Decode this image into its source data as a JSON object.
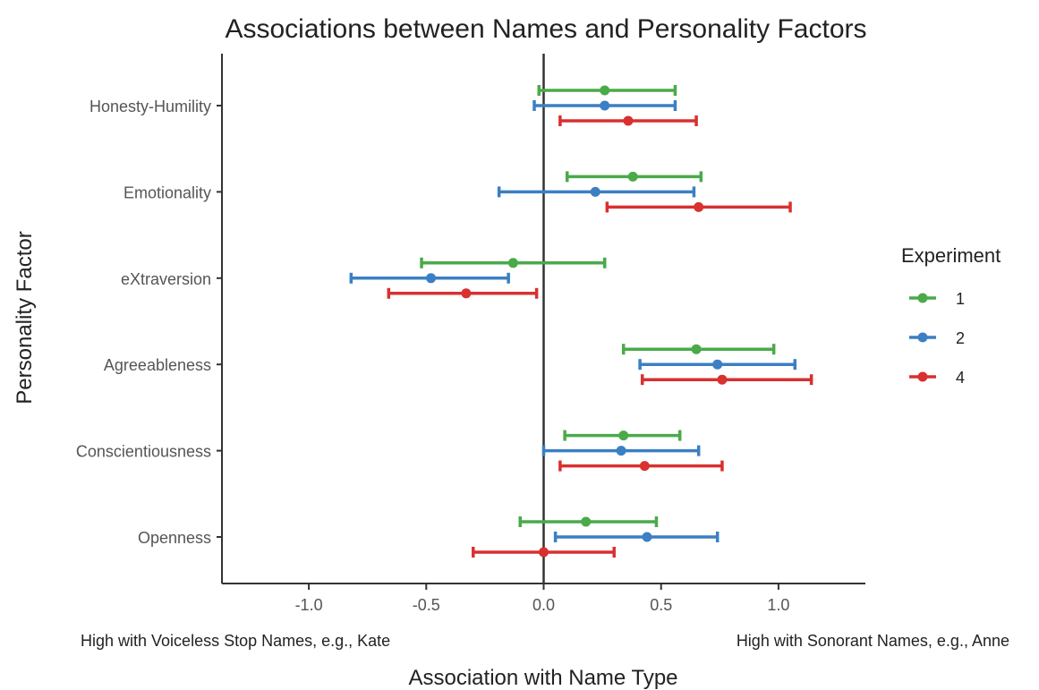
{
  "chart_data": {
    "type": "errorbar",
    "title": "Associations between Names and Personality Factors",
    "xlabel": "Association with Name Type",
    "ylabel": "Personality Factor",
    "xlim": [
      -1.37,
      1.37
    ],
    "x_ticks": [
      -1.0,
      -0.5,
      0.0,
      0.5,
      1.0
    ],
    "x_tick_labels": [
      "-1.0",
      "-0.5",
      "0.0",
      "0.5",
      "1.0"
    ],
    "x_annotation_left": "High with Voiceless Stop Names, e.g., Kate",
    "x_annotation_right": "High with Sonorant Names, e.g., Anne",
    "categories": [
      "Honesty-Humility",
      "Emotionality",
      "eXtraversion",
      "Agreeableness",
      "Conscientiousness",
      "Openness"
    ],
    "legend": {
      "title": "Experiment",
      "placement": "right"
    },
    "series": [
      {
        "name": "1",
        "color": "#4aaa4a",
        "points": [
          {
            "category": "Honesty-Humility",
            "estimate": 0.26,
            "low": -0.02,
            "high": 0.56
          },
          {
            "category": "Emotionality",
            "estimate": 0.38,
            "low": 0.1,
            "high": 0.67
          },
          {
            "category": "eXtraversion",
            "estimate": -0.13,
            "low": -0.52,
            "high": 0.26
          },
          {
            "category": "Agreeableness",
            "estimate": 0.65,
            "low": 0.34,
            "high": 0.98
          },
          {
            "category": "Conscientiousness",
            "estimate": 0.34,
            "low": 0.09,
            "high": 0.58
          },
          {
            "category": "Openness",
            "estimate": 0.18,
            "low": -0.1,
            "high": 0.48
          }
        ]
      },
      {
        "name": "2",
        "color": "#3b7fc4",
        "points": [
          {
            "category": "Honesty-Humility",
            "estimate": 0.26,
            "low": -0.04,
            "high": 0.56
          },
          {
            "category": "Emotionality",
            "estimate": 0.22,
            "low": -0.19,
            "high": 0.64
          },
          {
            "category": "eXtraversion",
            "estimate": -0.48,
            "low": -0.82,
            "high": -0.15
          },
          {
            "category": "Agreeableness",
            "estimate": 0.74,
            "low": 0.41,
            "high": 1.07
          },
          {
            "category": "Conscientiousness",
            "estimate": 0.33,
            "low": 0.0,
            "high": 0.66
          },
          {
            "category": "Openness",
            "estimate": 0.44,
            "low": 0.05,
            "high": 0.74
          }
        ]
      },
      {
        "name": "4",
        "color": "#d93030",
        "points": [
          {
            "category": "Honesty-Humility",
            "estimate": 0.36,
            "low": 0.07,
            "high": 0.65
          },
          {
            "category": "Emotionality",
            "estimate": 0.66,
            "low": 0.27,
            "high": 1.05
          },
          {
            "category": "eXtraversion",
            "estimate": -0.33,
            "low": -0.66,
            "high": -0.03
          },
          {
            "category": "Agreeableness",
            "estimate": 0.76,
            "low": 0.42,
            "high": 1.14
          },
          {
            "category": "Conscientiousness",
            "estimate": 0.43,
            "low": 0.07,
            "high": 0.76
          },
          {
            "category": "Openness",
            "estimate": 0.0,
            "low": -0.3,
            "high": 0.3
          }
        ]
      }
    ],
    "grid": false,
    "vline_at": 0
  }
}
